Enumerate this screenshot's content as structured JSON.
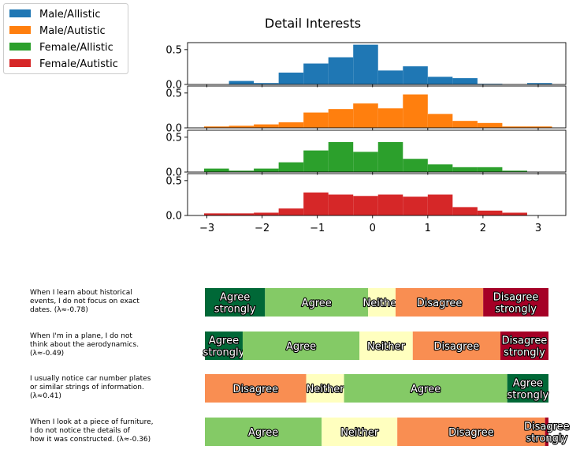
{
  "chart_data": [
    {
      "type": "bar",
      "subtype": "histogram-stack",
      "title": "Detail Interests",
      "x_ticks": [
        "−3",
        "−2",
        "−1",
        "0",
        "1",
        "2",
        "3"
      ],
      "x_tick_values": [
        -3,
        -2,
        -1,
        0,
        1,
        2,
        3
      ],
      "xlim": [
        -3.35,
        3.5
      ],
      "bin_edges": [
        -3.05,
        -2.6,
        -2.15,
        -1.7,
        -1.25,
        -0.8,
        -0.35,
        0.1,
        0.55,
        1.0,
        1.45,
        1.9,
        2.35,
        2.8,
        3.25
      ],
      "y_ticks": [
        "0.0",
        "0.5"
      ],
      "y_tick_values": [
        0,
        0.5
      ],
      "ylim": [
        0,
        0.6
      ],
      "legend": {
        "placement": "upper-left",
        "entries": [
          "Male/Allistic",
          "Male/Autistic",
          "Female/Allistic",
          "Female/Autistic"
        ]
      },
      "series": [
        {
          "name": "Male/Allistic",
          "color": "#1f77b4",
          "values": [
            0,
            0.05,
            0.02,
            0.17,
            0.3,
            0.39,
            0.57,
            0.2,
            0.26,
            0.11,
            0.09,
            0.01,
            0,
            0.02
          ]
        },
        {
          "name": "Male/Autistic",
          "color": "#ff7f0e",
          "values": [
            0.02,
            0.03,
            0.05,
            0.08,
            0.22,
            0.27,
            0.35,
            0.28,
            0.48,
            0.2,
            0.1,
            0.07,
            0.02,
            0.02
          ]
        },
        {
          "name": "Female/Allistic",
          "color": "#2ca02c",
          "values": [
            0.05,
            0.02,
            0.05,
            0.14,
            0.31,
            0.43,
            0.29,
            0.43,
            0.19,
            0.11,
            0.07,
            0.07,
            0.02,
            0
          ]
        },
        {
          "name": "Female/Autistic",
          "color": "#d62728",
          "values": [
            0.03,
            0.03,
            0.04,
            0.1,
            0.33,
            0.3,
            0.28,
            0.3,
            0.27,
            0.3,
            0.12,
            0.07,
            0.04,
            0
          ]
        }
      ]
    },
    {
      "type": "bar",
      "subtype": "stacked-horizontal-100",
      "items": [
        {
          "question": [
            "When I learn about historical",
            "events, I do not focus on exact",
            "dates. (λ≈-0.78)"
          ],
          "segments": [
            {
              "label": [
                "Agree",
                "strongly"
              ],
              "value": 17.5,
              "color": "#006837"
            },
            {
              "label": [
                "Agree"
              ],
              "value": 30,
              "color": "#84ca66"
            },
            {
              "label": [
                "Neither"
              ],
              "value": 8,
              "color": "#ffffbf"
            },
            {
              "label": [
                "Disagree"
              ],
              "value": 25.5,
              "color": "#f98e52"
            },
            {
              "label": [
                "Disagree",
                "strongly"
              ],
              "value": 19,
              "color": "#a50026"
            }
          ]
        },
        {
          "question": [
            "When I'm in a plane, I do not",
            "think about the aerodynamics.",
            "(λ≈-0.49)"
          ],
          "segments": [
            {
              "label": [
                "Agree",
                "strongly"
              ],
              "value": 11,
              "color": "#006837"
            },
            {
              "label": [
                "Agree"
              ],
              "value": 34,
              "color": "#84ca66"
            },
            {
              "label": [
                "Neither"
              ],
              "value": 15.5,
              "color": "#ffffbf"
            },
            {
              "label": [
                "Disagree"
              ],
              "value": 25.5,
              "color": "#f98e52"
            },
            {
              "label": [
                "Disagree",
                "strongly"
              ],
              "value": 14,
              "color": "#a50026"
            }
          ]
        },
        {
          "question": [
            "I usually notice car number plates",
            "or similar strings of information.",
            "(λ≈0.41)"
          ],
          "segments": [
            {
              "label": [
                "Disagree"
              ],
              "value": 29.5,
              "color": "#f98e52"
            },
            {
              "label": [
                "Neither"
              ],
              "value": 11,
              "color": "#ffffbf"
            },
            {
              "label": [
                "Agree"
              ],
              "value": 47.5,
              "color": "#84ca66"
            },
            {
              "label": [
                "Agree",
                "strongly"
              ],
              "value": 12,
              "color": "#006837"
            }
          ]
        },
        {
          "question": [
            "When I look at a piece of furniture,",
            "I do not notice the details of",
            "how it was constructed. (λ≈-0.36)"
          ],
          "segments": [
            {
              "label": [
                "Agree"
              ],
              "value": 34,
              "color": "#84ca66"
            },
            {
              "label": [
                "Neither"
              ],
              "value": 22,
              "color": "#ffffbf"
            },
            {
              "label": [
                "Disagree"
              ],
              "value": 43,
              "color": "#f98e52"
            },
            {
              "label": [
                "Disagree",
                "strongly"
              ],
              "value": 1,
              "color": "#a50026"
            }
          ]
        }
      ]
    }
  ]
}
